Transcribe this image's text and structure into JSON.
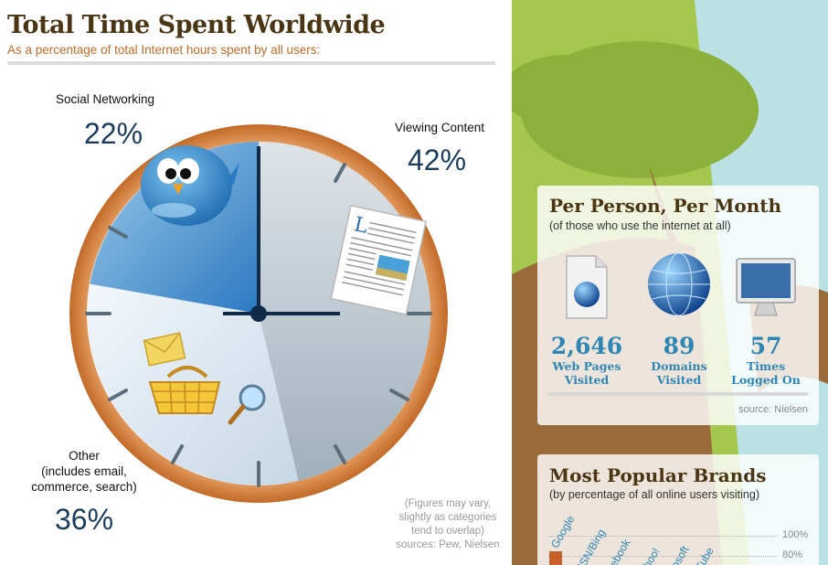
{
  "left": {
    "title": "Total Time Spent Worldwide",
    "subtitle": "As a percentage of total Internet hours spent by all users:",
    "segments": [
      {
        "label": "Social Networking",
        "percent": "22%"
      },
      {
        "label": "Viewing Content",
        "percent": "42%"
      },
      {
        "label_lines": [
          "Other",
          "(includes email,",
          "commerce, search)"
        ],
        "percent": "36%"
      }
    ],
    "note_lines": [
      "(Figures may vary,",
      "slightly as categories",
      "tend to overlap)",
      "sources: Pew, Nielsen"
    ]
  },
  "per_person": {
    "title": "Per Person, Per Month",
    "subtitle": "(of those who use the internet at all)",
    "stats": [
      {
        "value": "2,646",
        "caption_lines": [
          "Web Pages",
          "Visited"
        ],
        "icon": "web-page-icon"
      },
      {
        "value": "89",
        "caption_lines": [
          "Domains",
          "Visited"
        ],
        "icon": "globe-icon"
      },
      {
        "value": "57",
        "caption_lines": [
          "Times",
          "Logged On"
        ],
        "icon": "monitor-icon"
      }
    ],
    "source": "source: Nielsen"
  },
  "brands": {
    "title": "Most Popular Brands",
    "subtitle": "(by percentage of all online users visiting)",
    "axis_ticks": [
      "100%",
      "80%"
    ],
    "labels": [
      "Google",
      "MSN/Bing",
      "Facebook",
      "Yahoo!",
      "Microsoft",
      "YouTube"
    ]
  },
  "colors": {
    "social": "#2e7fc7",
    "content": "#b0bfc9",
    "other": "#d6e4f0",
    "rim": "#d2803e",
    "title": "#4a3614",
    "subtitle": "#c06a2a",
    "stat_blue": "#2e86b4",
    "bar_orange": "#c8602c"
  }
}
